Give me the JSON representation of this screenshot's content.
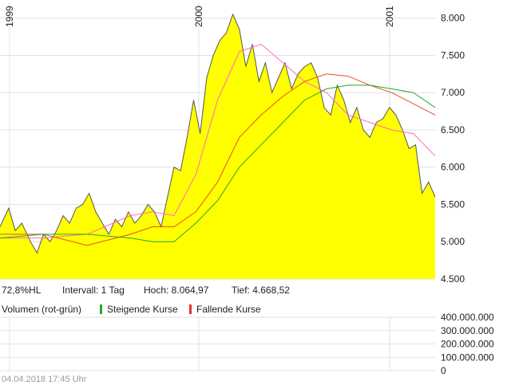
{
  "chart_data": {
    "type": "area",
    "x_labels": [
      "1999",
      "2000",
      "2001"
    ],
    "y_ticks": [
      "8.000",
      "7.500",
      "7.000",
      "6.500",
      "6.000",
      "5.500",
      "5.000",
      "4.500"
    ],
    "y_tick_values": [
      8000,
      7500,
      7000,
      6500,
      6000,
      5500,
      5000,
      4500
    ],
    "ylim": [
      4500,
      8200
    ],
    "grid": true,
    "colors": {
      "area_fill": "#ffff00",
      "price_line": "#555555",
      "ma_fast": "#ff66cc",
      "ma_mid": "#e8501a",
      "ma_slow": "#22aa22",
      "grid": "#e2e2e2",
      "volume_up": "#22aa22",
      "volume_down": "#dd3333"
    },
    "price_series": {
      "x_fraction": [
        0.0,
        0.02,
        0.035,
        0.05,
        0.07,
        0.085,
        0.1,
        0.115,
        0.13,
        0.145,
        0.16,
        0.175,
        0.19,
        0.205,
        0.22,
        0.235,
        0.25,
        0.265,
        0.28,
        0.295,
        0.31,
        0.325,
        0.34,
        0.355,
        0.37,
        0.385,
        0.4,
        0.415,
        0.43,
        0.445,
        0.46,
        0.475,
        0.49,
        0.505,
        0.52,
        0.535,
        0.55,
        0.565,
        0.58,
        0.595,
        0.61,
        0.625,
        0.64,
        0.655,
        0.67,
        0.685,
        0.7,
        0.715,
        0.73,
        0.745,
        0.76,
        0.775,
        0.79,
        0.805,
        0.82,
        0.835,
        0.85,
        0.865,
        0.88,
        0.895,
        0.91,
        0.925,
        0.94,
        0.955,
        0.97,
        0.985,
        1.0
      ],
      "values": [
        5200,
        5450,
        5150,
        5250,
        5000,
        4850,
        5100,
        5000,
        5150,
        5350,
        5250,
        5450,
        5500,
        5650,
        5400,
        5250,
        5100,
        5300,
        5200,
        5400,
        5250,
        5350,
        5500,
        5400,
        5200,
        5600,
        6000,
        5950,
        6400,
        6900,
        6450,
        7200,
        7500,
        7700,
        7800,
        8050,
        7850,
        7350,
        7650,
        7150,
        7400,
        7000,
        7200,
        7400,
        7050,
        7250,
        7350,
        7400,
        7200,
        6800,
        6700,
        7100,
        6900,
        6600,
        6800,
        6500,
        6400,
        6600,
        6650,
        6800,
        6700,
        6500,
        6250,
        6300,
        5650,
        5800,
        5600
      ]
    },
    "moving_averages": [
      {
        "x_fraction": [
          0.0,
          0.1,
          0.2,
          0.3,
          0.35,
          0.4,
          0.45,
          0.5,
          0.55,
          0.6,
          0.65,
          0.7,
          0.75,
          0.8,
          0.85,
          0.9,
          0.95,
          1.0
        ],
        "values": [
          5050,
          5050,
          5100,
          5350,
          5400,
          5350,
          5900,
          6900,
          7550,
          7650,
          7400,
          7150,
          7000,
          6700,
          6600,
          6500,
          6450,
          6150
        ]
      },
      {
        "x_fraction": [
          0.0,
          0.1,
          0.2,
          0.3,
          0.35,
          0.4,
          0.45,
          0.5,
          0.55,
          0.6,
          0.65,
          0.7,
          0.75,
          0.8,
          0.85,
          0.9,
          0.95,
          1.0
        ],
        "values": [
          5100,
          5100,
          4950,
          5100,
          5200,
          5200,
          5400,
          5800,
          6400,
          6700,
          6950,
          7150,
          7250,
          7220,
          7100,
          7000,
          6850,
          6700
        ]
      },
      {
        "x_fraction": [
          0.0,
          0.1,
          0.2,
          0.3,
          0.35,
          0.4,
          0.45,
          0.5,
          0.55,
          0.6,
          0.65,
          0.7,
          0.75,
          0.8,
          0.85,
          0.9,
          0.95,
          1.0
        ],
        "values": [
          5050,
          5100,
          5100,
          5050,
          5000,
          5000,
          5250,
          5550,
          6000,
          6300,
          6600,
          6900,
          7050,
          7100,
          7100,
          7050,
          7000,
          6800
        ]
      }
    ],
    "info": {
      "change": "72,8%HL",
      "interval": "Intervall: 1 Tag",
      "high": "Hoch: 8.064,97",
      "low": "Tief: 4.668,52"
    },
    "volume": {
      "title": "Volumen (rot-grün)",
      "legend_up": "Steigende Kurse",
      "legend_down": "Fallende Kurse",
      "y_ticks": [
        "400.000.000",
        "300.000.000",
        "200.000.000",
        "100.000.000",
        "0"
      ],
      "y_tick_values": [
        400000000,
        300000000,
        200000000,
        100000000,
        0
      ]
    },
    "footer": "04.04.2018 17:45 Uhr"
  }
}
